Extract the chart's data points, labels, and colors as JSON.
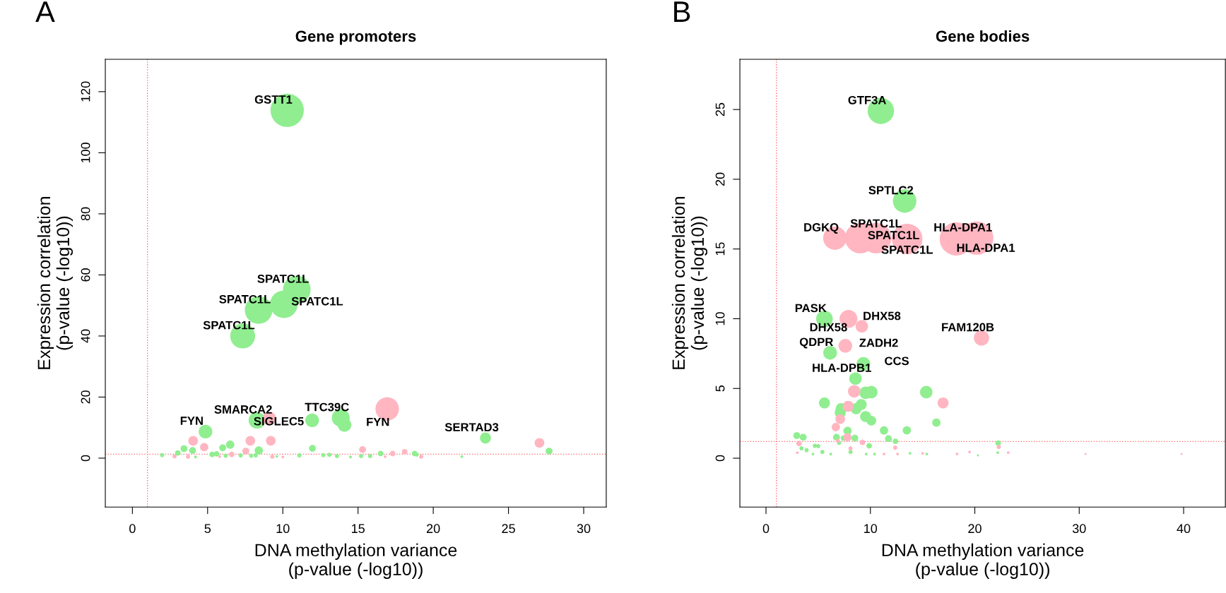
{
  "chart_data": [
    {
      "type": "bubble",
      "title": "Gene promoters",
      "xlabel": "DNA methylation variance\n(p-value (-log10))",
      "ylabel": "Expression correlation\n(p-value (-log10))",
      "xlim": [
        -1.8,
        31.5
      ],
      "ylim": [
        -16,
        130.6
      ],
      "xticks": [
        0,
        5,
        10,
        15,
        20,
        25,
        30
      ],
      "yticks": [
        0,
        20,
        40,
        60,
        80,
        100,
        120
      ],
      "ref_lines": [
        {
          "axis": "x",
          "value": 1,
          "color": "#ff6b6b",
          "line_style": "dotted"
        },
        {
          "axis": "y",
          "value": 1.3,
          "color": "#ff6b6b",
          "line_style": "dotted"
        }
      ],
      "series": [
        {
          "color": "#90ee90",
          "x": [
            10.29,
            10.93,
            10.07,
            8.39,
            7.33,
            8.28,
            11.95,
            13.85,
            14.1,
            4.86,
            23.47,
            6.5,
            6.0,
            3.43,
            4.0,
            8.4,
            11.97,
            27.7,
            3.02,
            16.5,
            18.76,
            1.98,
            5.3,
            5.6,
            6.2,
            7.2,
            7.9,
            8.2,
            9.6,
            11.1,
            12.7,
            13.1,
            13.6,
            15.2,
            15.8,
            18.9,
            21.9,
            14.5,
            4.2
          ],
          "values": [
            113.9,
            55.2,
            50.4,
            48.5,
            40.0,
            12.4,
            12.4,
            13.2,
            10.9,
            8.7,
            6.6,
            4.4,
            3.4,
            3.1,
            2.5,
            2.5,
            3.2,
            2.3,
            1.7,
            1.5,
            1.5,
            1.0,
            1.2,
            1.4,
            0.8,
            0.9,
            0.8,
            0.9,
            0.6,
            0.9,
            1.0,
            1.1,
            0.7,
            0.7,
            0.7,
            1.2,
            0.5,
            0.4,
            0.4
          ],
          "sizes": [
            1,
            0.69,
            0.69,
            0.69,
            0.56,
            0.25,
            0.17,
            0.29,
            0.17,
            0.17,
            0.11,
            0.0625,
            0.043,
            0.043,
            0.043,
            0.0625,
            0.043,
            0.043,
            0.028,
            0.028,
            0.028,
            0.016,
            0.028,
            0.028,
            0.016,
            0.016,
            0.016,
            0.016,
            0.007,
            0.016,
            0.016,
            0.016,
            0.016,
            0.016,
            0.016,
            0.016,
            0.007,
            0.007,
            0.007
          ]
        },
        {
          "color": "#ffb6c1",
          "x": [
            16.94,
            9.1,
            27.06,
            4.04,
            7.84,
            9.2,
            4.77,
            7.54,
            15.3,
            17.3,
            18.1,
            6.6,
            2.8,
            3.7,
            9.3,
            10.0,
            16.8,
            19.2,
            5.8
          ],
          "values": [
            16.1,
            13.0,
            5.0,
            5.7,
            5.7,
            5.7,
            3.6,
            2.3,
            2.8,
            1.5,
            2.1,
            1.2,
            0.6,
            0.5,
            0.5,
            0.4,
            0.5,
            0.5,
            0.5
          ],
          "sizes": [
            0.5,
            0.17,
            0.085,
            0.085,
            0.085,
            0.085,
            0.0625,
            0.043,
            0.043,
            0.028,
            0.028,
            0.028,
            0.016,
            0.016,
            0.016,
            0.007,
            0.007,
            0.016,
            0.007
          ]
        }
      ],
      "annotations": [
        "A",
        {
          "text": "GSTT1",
          "x": 10.29,
          "y": 113.9
        },
        {
          "text": "SPATC1L",
          "x": 10.93,
          "y": 55.2
        },
        {
          "text": "SPATC1L",
          "x": 8.39,
          "y": 48.5
        },
        {
          "text": "SPATC1L",
          "x": 10.07,
          "y": 50.4
        },
        {
          "text": "SPATC1L",
          "x": 7.33,
          "y": 40.0
        },
        {
          "text": "SMARCA2",
          "x": 8.28,
          "y": 12.4
        },
        {
          "text": "TTC39C",
          "x": 13.85,
          "y": 13.2
        },
        {
          "text": "SIGLEC5",
          "x": 11.95,
          "y": 12.4
        },
        {
          "text": "FYN",
          "x": 4.86,
          "y": 8.7
        },
        {
          "text": "FYN",
          "x": 14.1,
          "y": 10.9
        },
        {
          "text": "SERTAD3",
          "x": 23.47,
          "y": 6.6
        }
      ]
    },
    {
      "type": "bubble",
      "title": "Gene bodies",
      "xlabel": "DNA methylation variance\n(p-value (-log10))",
      "ylabel": "Expression correlation\n(p-value (-log10))",
      "xlim": [
        -2.5,
        44
      ],
      "ylim": [
        -3.5,
        28.6
      ],
      "xticks": [
        0,
        10,
        20,
        30,
        40
      ],
      "yticks": [
        0,
        5,
        10,
        15,
        20,
        25
      ],
      "ref_lines": [
        {
          "axis": "x",
          "value": 1,
          "color": "#ff6b6b",
          "line_style": "dotted"
        },
        {
          "axis": "y",
          "value": 1.2,
          "color": "#ff6b6b",
          "line_style": "dotted"
        }
      ],
      "series": [
        {
          "color": "#90ee90",
          "x": [
            11.0,
            13.28,
            5.6,
            6.14,
            9.33,
            8.57,
            9.54,
            10.09,
            15.35,
            5.6,
            7.2,
            9.12,
            8.63,
            7.11,
            9.54,
            10.09,
            16.32,
            11.3,
            13.49,
            7.81,
            2.95,
            3.56,
            6.75,
            8.51,
            11.73,
            7.42,
            12.4,
            22.24,
            9.88,
            3.4,
            3.89,
            4.68,
            5.0,
            7.0,
            4.5,
            5.4,
            6.2,
            8.1,
            9.6,
            10.4,
            13.8,
            15.4,
            20.3,
            22.2
          ],
          "values": [
            24.9,
            18.44,
            9.99,
            7.56,
            6.76,
            5.71,
            4.69,
            4.74,
            4.74,
            3.96,
            3.55,
            3.85,
            3.55,
            3.26,
            2.99,
            2.69,
            2.55,
            1.99,
            2.0,
            1.96,
            1.62,
            1.5,
            1.5,
            1.44,
            1.4,
            1.44,
            1.21,
            1.08,
            0.89,
            0.71,
            0.58,
            0.89,
            0.87,
            1.1,
            0.3,
            0.45,
            0.3,
            0.45,
            0.3,
            0.3,
            0.35,
            0.3,
            0.2,
            0.4
          ],
          "sizes": [
            0.63,
            0.5,
            0.25,
            0.17,
            0.17,
            0.14,
            0.14,
            0.14,
            0.14,
            0.11,
            0.11,
            0.11,
            0.11,
            0.11,
            0.11,
            0.085,
            0.0625,
            0.0625,
            0.0625,
            0.0625,
            0.043,
            0.043,
            0.043,
            0.043,
            0.043,
            0.028,
            0.028,
            0.028,
            0.028,
            0.016,
            0.016,
            0.016,
            0.016,
            0.016,
            0.007,
            0.016,
            0.007,
            0.016,
            0.007,
            0.007,
            0.007,
            0.007,
            0.004,
            0.007
          ]
        },
        {
          "color": "#ffb6c1",
          "x": [
            6.6,
            9.03,
            10.55,
            13.52,
            18.23,
            20.18,
            7.9,
            9.18,
            20.64,
            7.6,
            8.45,
            16.96,
            7.87,
            7.11,
            6.69,
            7.81,
            3.16,
            22.3,
            9.24,
            8.09,
            12.37,
            6.88,
            3.0,
            11.3,
            12.6,
            15.0,
            18.3,
            19.5,
            23.2,
            30.6,
            39.8
          ],
          "values": [
            15.78,
            15.78,
            15.78,
            15.72,
            15.72,
            15.78,
            9.99,
            9.46,
            8.62,
            8.06,
            4.8,
            3.96,
            3.72,
            2.81,
            2.23,
            1.5,
            1.06,
            0.81,
            1.13,
            0.71,
            0.76,
            1.25,
            0.4,
            0.3,
            0.3,
            0.35,
            0.3,
            0.45,
            0.4,
            0.3,
            0.3
          ],
          "sizes": [
            0.5,
            0.84,
            0.84,
            0.84,
            1,
            1,
            0.29,
            0.14,
            0.21,
            0.17,
            0.14,
            0.11,
            0.11,
            0.085,
            0.0625,
            0.0625,
            0.028,
            0.016,
            0.028,
            0.016,
            0.016,
            0.016,
            0.007,
            0.007,
            0.007,
            0.007,
            0.007,
            0.007,
            0.007,
            0.004,
            0.004
          ]
        }
      ],
      "annotations": [
        "B",
        {
          "text": "GTF3A",
          "x": 11.0,
          "y": 24.9
        },
        {
          "text": "SPTLC2",
          "x": 13.28,
          "y": 18.44
        },
        {
          "text": "DGKQ",
          "x": 6.6,
          "y": 15.78
        },
        {
          "text": "SPATC1L",
          "x": 9.03,
          "y": 15.78
        },
        {
          "text": "SPATC1L",
          "x": 13.52,
          "y": 15.72
        },
        {
          "text": "SPATC1L",
          "x": 10.55,
          "y": 15.78
        },
        {
          "text": "HLA-DPA1",
          "x": 20.18,
          "y": 15.78
        },
        {
          "text": "HLA-DPA1",
          "x": 18.23,
          "y": 15.72
        },
        {
          "text": "PASK",
          "x": 5.6,
          "y": 9.99
        },
        {
          "text": "DHX58",
          "x": 7.9,
          "y": 9.99
        },
        {
          "text": "DHX58",
          "x": 9.18,
          "y": 9.46
        },
        {
          "text": "FAM120B",
          "x": 20.64,
          "y": 8.62
        },
        {
          "text": "ZADH2",
          "x": 7.6,
          "y": 8.06
        },
        {
          "text": "QDPR",
          "x": 6.14,
          "y": 7.56
        },
        {
          "text": "CCS",
          "x": 9.33,
          "y": 6.76
        },
        {
          "text": "HLA-DPB1",
          "x": 8.57,
          "y": 5.71
        }
      ]
    }
  ]
}
